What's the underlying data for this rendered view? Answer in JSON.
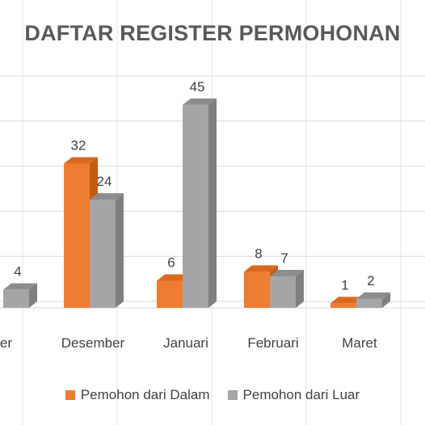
{
  "chart_data": {
    "type": "bar",
    "title": "DAFTAR REGISTER PERMOHONAN",
    "categories": [
      "ber",
      "Desember",
      "Januari",
      "Februari",
      "Maret"
    ],
    "series": [
      {
        "name": "Pemohon dari Dalam",
        "color": "#ED7D31",
        "values": [
          null,
          32,
          6,
          8,
          1
        ]
      },
      {
        "name": "Pemohon dari Luar",
        "color": "#A5A5A5",
        "values": [
          4,
          24,
          45,
          7,
          2
        ]
      }
    ],
    "ylim": [
      0,
      50
    ],
    "grid": true,
    "legend": "bottom",
    "style": "3d-clustered-column"
  }
}
